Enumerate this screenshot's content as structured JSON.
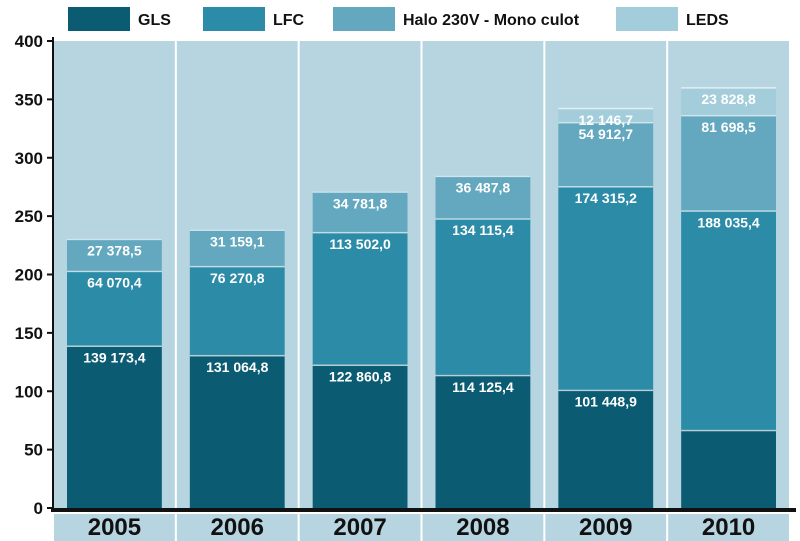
{
  "chart_data": {
    "type": "bar",
    "stacked": true,
    "categories": [
      "2005",
      "2006",
      "2007",
      "2008",
      "2009",
      "2010"
    ],
    "series": [
      {
        "name": "GLS",
        "color": "#0b5c73",
        "values": [
          139.2,
          131.1,
          122.9,
          114.1,
          101.4,
          67
        ],
        "labels": [
          "139 173,4",
          "131 064,8",
          "122 860,8",
          "114 125,4",
          "101 448,9",
          ""
        ]
      },
      {
        "name": "LFC",
        "color": "#2c8ba7",
        "values": [
          64.1,
          76.3,
          113.6,
          134.1,
          174.4,
          188.0
        ],
        "labels": [
          "64 070,4",
          "76 270,8",
          "113 502,0",
          "134 115,4",
          "174 315,2",
          "188 035,4"
        ]
      },
      {
        "name": "Halo 230V - Mono culot",
        "color": "#63a8bf",
        "values": [
          27.4,
          31.2,
          34.8,
          36.5,
          54.9,
          81.7
        ],
        "labels": [
          "27 378,5",
          "31 159,1",
          "34 781,8",
          "36 487,8",
          "54 912,7",
          "81 698,5"
        ]
      },
      {
        "name": "LEDS",
        "color": "#a3cdda",
        "values": [
          0,
          0,
          0,
          0,
          12.1,
          23.8
        ],
        "labels": [
          "",
          "",
          "",
          "",
          "12 146,7",
          "23 828,8"
        ]
      }
    ],
    "ylim": [
      0,
      400
    ],
    "yticks": [
      0,
      50,
      100,
      150,
      200,
      250,
      300,
      350,
      400
    ],
    "column_background": "#b7d5e0",
    "legend_position": "top",
    "grid": false
  }
}
